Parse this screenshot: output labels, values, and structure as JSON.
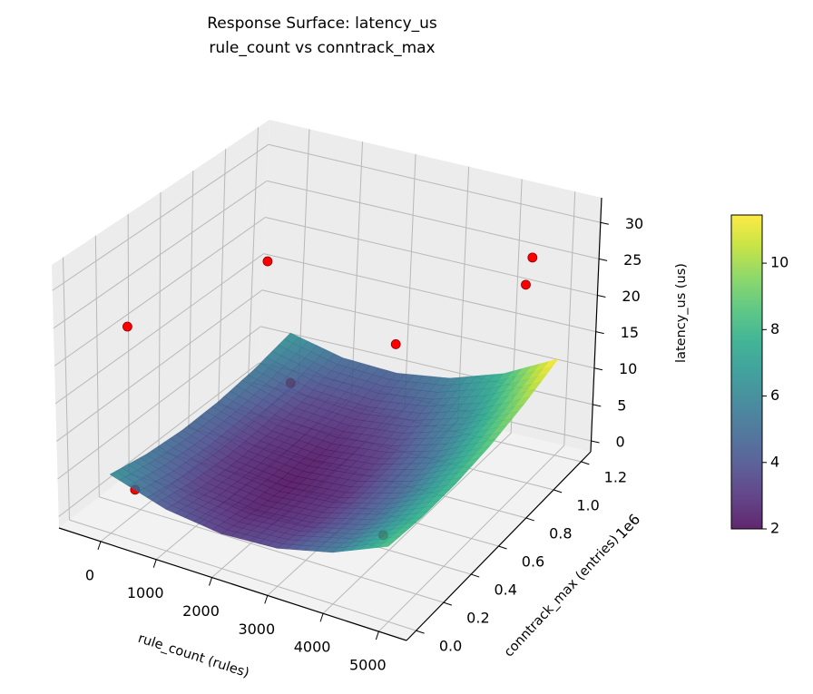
{
  "chart_data": {
    "type": "surface3d",
    "title": "Response Surface: latency_us",
    "subtitle": "rule_count vs conntrack_max",
    "xlabel": "rule_count (rules)",
    "ylabel": "conntrack_max (entries)",
    "ylabel_offset": "1e6",
    "zlabel": "latency_us (us)",
    "colorbar_label": "latency_us (us)",
    "colormap": "viridis",
    "xlim": [
      -750,
      5500
    ],
    "ylim": [
      -70000,
      1270000
    ],
    "zlim": [
      -1.5,
      33.4
    ],
    "x_ticks": [
      0,
      1000,
      2000,
      3000,
      4000,
      5000
    ],
    "x_tick_labels": [
      "0",
      "1000",
      "2000",
      "3000",
      "4000",
      "5000"
    ],
    "y_ticks": [
      0,
      200000,
      400000,
      600000,
      800000,
      1000000,
      1200000
    ],
    "y_tick_labels": [
      "0.0",
      "0.2",
      "0.4",
      "0.6",
      "0.8",
      "1.0",
      "1.2"
    ],
    "z_ticks": [
      0,
      5,
      10,
      15,
      20,
      25,
      30
    ],
    "z_tick_labels": [
      "0",
      "5",
      "10",
      "15",
      "20",
      "25",
      "30"
    ],
    "colorbar_range": [
      2,
      11.45
    ],
    "colorbar_ticks": [
      2,
      4,
      6,
      8,
      10
    ],
    "colorbar_tick_labels": [
      "2",
      "4",
      "6",
      "8",
      "10"
    ],
    "grid": true,
    "surface": {
      "x": [
        0,
        1000,
        2000,
        3000,
        4000,
        5000
      ],
      "y": [
        0,
        240000,
        480000,
        720000,
        960000,
        1200000
      ],
      "z": [
        [
          6.32,
          4.04,
          3.12,
          3.56,
          5.36,
          8.52
        ],
        [
          5.24,
          3.08,
          2.28,
          2.84,
          4.76,
          8.04
        ],
        [
          4.72,
          2.68,
          2.0,
          2.68,
          4.72,
          8.12
        ],
        [
          4.76,
          2.84,
          2.28,
          3.08,
          5.24,
          8.76
        ],
        [
          5.36,
          3.56,
          3.12,
          4.04,
          6.32,
          9.96
        ],
        [
          6.52,
          4.84,
          4.52,
          5.56,
          7.96,
          11.72
        ]
      ],
      "alpha": 0.85
    },
    "points": [
      {
        "x": 0,
        "y": 130000,
        "z": 24
      },
      {
        "x": 0,
        "y": 165000,
        "z": 1.7
      },
      {
        "x": 0,
        "y": 1030000,
        "z": 19
      },
      {
        "x": 200,
        "y": 1140000,
        "z": 1
      },
      {
        "x": 2100,
        "y": 1150000,
        "z": 9.5
      },
      {
        "x": 4400,
        "y": 200000,
        "z": 5
      },
      {
        "x": 4600,
        "y": 1140000,
        "z": 26
      },
      {
        "x": 4600,
        "y": 1100000,
        "z": 23
      }
    ],
    "point_color": "#ff0000"
  }
}
